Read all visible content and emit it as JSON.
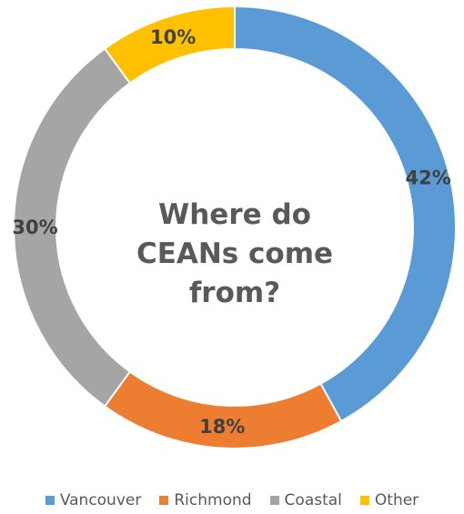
{
  "chart_data": {
    "type": "pie",
    "title_lines": [
      "Where do",
      "CEANs come",
      "from?"
    ],
    "categories": [
      "Vancouver",
      "Richmond",
      "Coastal",
      "Other"
    ],
    "values": [
      42,
      18,
      30,
      10
    ],
    "labels": [
      "42%",
      "18%",
      "30%",
      "10%"
    ],
    "colors": [
      "#5B9BD5",
      "#ED7D31",
      "#A5A5A5",
      "#FFC000"
    ],
    "donut": true,
    "legend_position": "bottom"
  }
}
